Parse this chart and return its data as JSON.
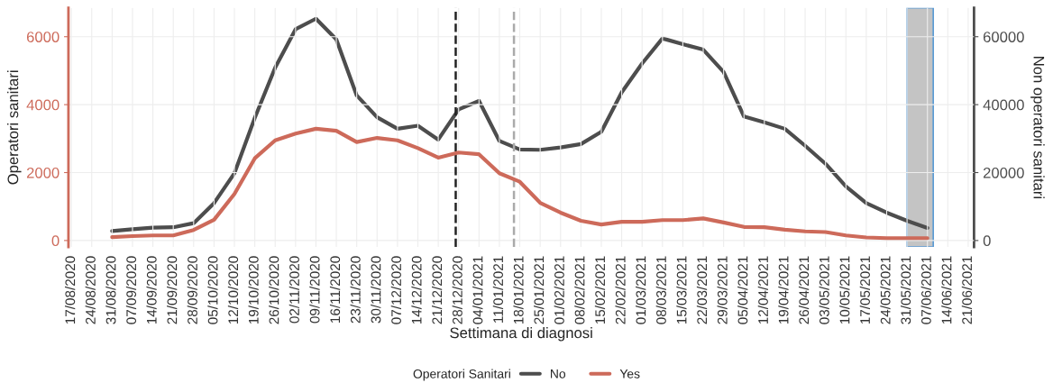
{
  "chart_data": {
    "type": "line",
    "xlabel": "Settimana di diagnosi",
    "ylabel": "Operatori sanitari",
    "y2label": "Non operatori sanitari",
    "legend_title": "Operatori Sanitari",
    "x": [
      "2020-08-31",
      "2020-09-07",
      "2020-09-14",
      "2020-09-21",
      "2020-09-28",
      "2020-10-05",
      "2020-10-12",
      "2020-10-19",
      "2020-10-26",
      "2020-11-02",
      "2020-11-09",
      "2020-11-16",
      "2020-11-23",
      "2020-11-30",
      "2020-12-07",
      "2020-12-14",
      "2020-12-21",
      "2020-12-28",
      "2021-01-04",
      "2021-01-11",
      "2021-01-18",
      "2021-01-25",
      "2021-02-01",
      "2021-02-08",
      "2021-02-15",
      "2021-02-22",
      "2021-03-01",
      "2021-03-08",
      "2021-03-15",
      "2021-03-22",
      "2021-03-29",
      "2021-04-05",
      "2021-04-12",
      "2021-04-19",
      "2021-04-26",
      "2021-05-03",
      "2021-05-10",
      "2021-05-17",
      "2021-05-24",
      "2021-05-31",
      "2021-06-07"
    ],
    "series": [
      {
        "name": "No",
        "color": "#4d4d4d",
        "axis": "y2",
        "values": [
          2800,
          3300,
          3800,
          3900,
          5100,
          11000,
          19800,
          36100,
          50900,
          62200,
          65300,
          59200,
          42700,
          36300,
          32900,
          33800,
          29700,
          38600,
          41100,
          29300,
          26800,
          26700,
          27400,
          28400,
          32000,
          43600,
          52100,
          59500,
          57800,
          56200,
          49600,
          36500,
          34800,
          32900,
          27900,
          22600,
          15900,
          11000,
          8200,
          5800,
          3700
        ]
      },
      {
        "name": "Yes",
        "color": "#cd6a5a",
        "values": [
          100,
          130,
          150,
          150,
          310,
          610,
          1370,
          2420,
          2950,
          3150,
          3290,
          3230,
          2900,
          3020,
          2950,
          2720,
          2440,
          2590,
          2540,
          1980,
          1730,
          1110,
          820,
          580,
          470,
          550,
          550,
          600,
          600,
          650,
          530,
          400,
          390,
          320,
          270,
          250,
          150,
          90,
          70,
          70,
          70
        ]
      }
    ],
    "xlim": [
      "2020-08-16",
      "2021-06-23"
    ],
    "xticks": [
      {
        "value": "2020-08-17",
        "label": "17/08/2020"
      },
      {
        "value": "2020-08-24",
        "label": "24/08/2020"
      },
      {
        "value": "2020-08-31",
        "label": "31/08/2020"
      },
      {
        "value": "2020-09-07",
        "label": "07/09/2020"
      },
      {
        "value": "2020-09-14",
        "label": "14/09/2020"
      },
      {
        "value": "2020-09-21",
        "label": "21/09/2020"
      },
      {
        "value": "2020-09-28",
        "label": "28/09/2020"
      },
      {
        "value": "2020-10-05",
        "label": "05/10/2020"
      },
      {
        "value": "2020-10-12",
        "label": "12/10/2020"
      },
      {
        "value": "2020-10-19",
        "label": "19/10/2020"
      },
      {
        "value": "2020-10-26",
        "label": "26/10/2020"
      },
      {
        "value": "2020-11-02",
        "label": "02/11/2020"
      },
      {
        "value": "2020-11-09",
        "label": "09/11/2020"
      },
      {
        "value": "2020-11-16",
        "label": "16/11/2020"
      },
      {
        "value": "2020-11-23",
        "label": "23/11/2020"
      },
      {
        "value": "2020-11-30",
        "label": "30/11/2020"
      },
      {
        "value": "2020-12-07",
        "label": "07/12/2020"
      },
      {
        "value": "2020-12-14",
        "label": "14/12/2020"
      },
      {
        "value": "2020-12-21",
        "label": "21/12/2020"
      },
      {
        "value": "2020-12-28",
        "label": "28/12/2020"
      },
      {
        "value": "2021-01-04",
        "label": "04/01/2021"
      },
      {
        "value": "2021-01-11",
        "label": "11/01/2021"
      },
      {
        "value": "2021-01-18",
        "label": "18/01/2021"
      },
      {
        "value": "2021-01-25",
        "label": "25/01/2021"
      },
      {
        "value": "2021-02-01",
        "label": "01/02/2021"
      },
      {
        "value": "2021-02-08",
        "label": "08/02/2021"
      },
      {
        "value": "2021-02-15",
        "label": "15/02/2021"
      },
      {
        "value": "2021-02-22",
        "label": "22/02/2021"
      },
      {
        "value": "2021-03-01",
        "label": "01/03/2021"
      },
      {
        "value": "2021-03-08",
        "label": "08/03/2021"
      },
      {
        "value": "2021-03-15",
        "label": "15/03/2021"
      },
      {
        "value": "2021-03-22",
        "label": "22/03/2021"
      },
      {
        "value": "2021-03-29",
        "label": "29/03/2021"
      },
      {
        "value": "2021-04-05",
        "label": "05/04/2021"
      },
      {
        "value": "2021-04-12",
        "label": "12/04/2021"
      },
      {
        "value": "2021-04-19",
        "label": "19/04/2021"
      },
      {
        "value": "2021-04-26",
        "label": "26/04/2021"
      },
      {
        "value": "2021-05-03",
        "label": "03/05/2021"
      },
      {
        "value": "2021-05-10",
        "label": "10/05/2021"
      },
      {
        "value": "2021-05-17",
        "label": "17/05/2021"
      },
      {
        "value": "2021-05-24",
        "label": "24/05/2021"
      },
      {
        "value": "2021-05-31",
        "label": "31/05/2021"
      },
      {
        "value": "2021-06-07",
        "label": "07/06/2021"
      },
      {
        "value": "2021-06-14",
        "label": "14/06/2021"
      },
      {
        "value": "2021-06-21",
        "label": "21/06/2021"
      }
    ],
    "ylim": [
      -190,
      6850
    ],
    "yticks": [
      0,
      2000,
      4000,
      6000
    ],
    "y2lim": [
      -1900,
      68500
    ],
    "y2ticks": [
      0,
      20000,
      40000,
      60000
    ],
    "ref_lines": [
      {
        "axis": "x",
        "value": "2020-12-27",
        "color": "#222222",
        "line_style": "dashed"
      },
      {
        "axis": "x",
        "value": "2021-01-16",
        "color": "#aaaaaa",
        "line_style": "dashed"
      }
    ],
    "bands": [
      {
        "axis": "x",
        "from": "2021-05-31",
        "to": "2021-06-09",
        "color": "#c4c4c4"
      }
    ],
    "grid": true,
    "legend": "bottom"
  }
}
